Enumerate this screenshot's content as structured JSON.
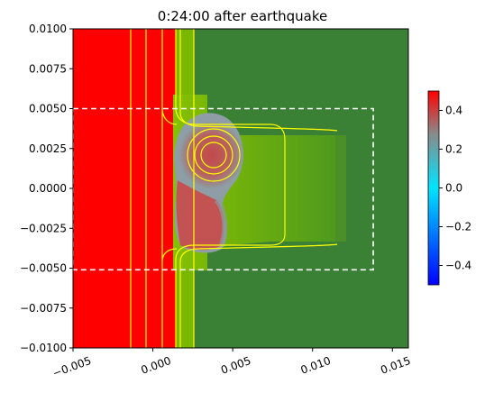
{
  "chart_data": {
    "type": "heatmap",
    "title": "0:24:00 after earthquake",
    "xlabel": "",
    "ylabel": "",
    "xlim": [
      -0.005,
      0.016
    ],
    "ylim": [
      -0.01,
      0.01
    ],
    "x_ticks": [
      -0.005,
      0.0,
      0.005,
      0.01,
      0.015
    ],
    "x_tick_labels": [
      "−0.005",
      "0.000",
      "0.005",
      "0.010",
      "0.015"
    ],
    "y_ticks": [
      -0.01,
      -0.0075,
      -0.005,
      -0.0025,
      0.0,
      0.0025,
      0.005,
      0.0075,
      0.01
    ],
    "y_tick_labels": [
      "−0.0100",
      "−0.0075",
      "−0.0050",
      "−0.0025",
      "0.0000",
      "0.0025",
      "0.0050",
      "0.0075",
      "0.0100"
    ],
    "colorbar": {
      "vmin": -0.5,
      "vmax": 0.5,
      "ticks": [
        0.4,
        0.2,
        0.0,
        -0.2,
        -0.4
      ],
      "tick_labels": [
        "0.4",
        "0.2",
        "0.0",
        "−0.2",
        "−0.4"
      ],
      "colors": [
        "#0000ff",
        "#00e5ff",
        "#ff0000"
      ]
    },
    "region_box": {
      "x": [
        -0.005,
        0.0138
      ],
      "y": [
        -0.0051,
        0.005
      ],
      "style": "dashed",
      "color": "#ffffff"
    },
    "colors": {
      "saturated_high": "#ff0000",
      "land_dark": "#3a8135",
      "land_light": "#7ab800",
      "contour": "#ffff00"
    },
    "grid": false,
    "legend": "none"
  }
}
